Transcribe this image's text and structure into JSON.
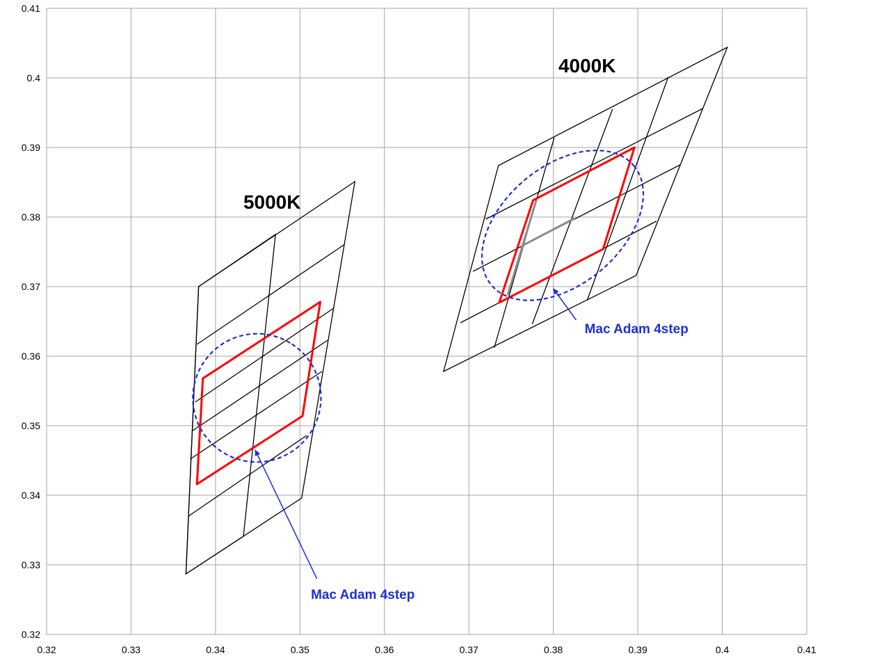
{
  "chart_data": {
    "type": "scatter",
    "xlim": [
      0.32,
      0.41
    ],
    "ylim": [
      0.32,
      0.41
    ],
    "x_ticks": [
      "0.32",
      "0.33",
      "0.34",
      "0.35",
      "0.36",
      "0.37",
      "0.38",
      "0.39",
      "0.4",
      "0.41"
    ],
    "y_ticks": [
      "0.32",
      "0.33",
      "0.34",
      "0.35",
      "0.36",
      "0.37",
      "0.38",
      "0.39",
      "0.4",
      "0.41"
    ],
    "grid": true,
    "colors": {
      "grid": "#a6a6a6",
      "quad_lines": "#000000",
      "bin_outline": "#ff0000",
      "ellipse": "#1f2ed6",
      "gray_lines": "#8c8c8c",
      "annotation": "#1f2ed6"
    },
    "groups": [
      {
        "label": "5000K",
        "label_position": [
          0.3433,
          0.3812
        ],
        "grid_quads": [
          [
            [
              0.3365,
              0.3287
            ],
            [
              0.338,
              0.37
            ],
            [
              0.3565,
              0.3851
            ],
            [
              0.3502,
              0.3396
            ]
          ],
          [
            [
              0.3365,
              0.3287
            ],
            [
              0.338,
              0.37
            ],
            [
              0.3471,
              0.3775
            ],
            [
              0.3433,
              0.3341
            ]
          ],
          [
            [
              0.3373,
              0.3493
            ],
            [
              0.3533,
              0.3623
            ]
          ],
          [
            [
              0.3368,
              0.337
            ],
            [
              0.3508,
              0.3486
            ]
          ],
          [
            [
              0.337,
              0.3452
            ],
            [
              0.3526,
              0.3578
            ]
          ],
          [
            [
              0.3376,
              0.3534
            ],
            [
              0.354,
              0.3669
            ]
          ],
          [
            [
              0.3378,
              0.3617
            ],
            [
              0.3552,
              0.376
            ]
          ]
        ],
        "bin_outline": [
          [
            0.3378,
            0.3416
          ],
          [
            0.3385,
            0.3568
          ],
          [
            0.3524,
            0.3678
          ],
          [
            0.3503,
            0.3514
          ]
        ],
        "ellipse": {
          "cx": 0.3449,
          "cy": 0.354,
          "rx": 0.0076,
          "ry": 0.0092,
          "rotation_deg": -57
        },
        "annotation": {
          "text": "Mac Adam 4step",
          "text_position": [
            0.3513,
            0.3251
          ],
          "arrow_from": [
            0.352,
            0.328
          ],
          "arrow_to": [
            0.3447,
            0.3465
          ]
        }
      },
      {
        "label": "4000K",
        "label_position": [
          0.3806,
          0.4008
        ],
        "grid_quads": [
          [
            [
              0.367,
              0.3578
            ],
            [
              0.3735,
              0.3874
            ],
            [
              0.4006,
              0.4044
            ],
            [
              0.3898,
              0.3716
            ]
          ],
          [
            [
              0.373,
              0.3612
            ],
            [
              0.3801,
              0.3914
            ]
          ],
          [
            [
              0.3775,
              0.3646
            ],
            [
              0.387,
              0.3955
            ]
          ],
          [
            [
              0.384,
              0.368
            ],
            [
              0.3936,
              0.4001
            ]
          ],
          [
            [
              0.369,
              0.3648
            ],
            [
              0.3922,
              0.3794
            ]
          ],
          [
            [
              0.3705,
              0.3722
            ],
            [
              0.395,
              0.3875
            ]
          ],
          [
            [
              0.372,
              0.3797
            ],
            [
              0.3977,
              0.3956
            ]
          ]
        ],
        "bin_outline": [
          [
            0.3736,
            0.3677
          ],
          [
            0.3776,
            0.3824
          ],
          [
            0.3896,
            0.39
          ],
          [
            0.3859,
            0.3754
          ]
        ],
        "gray_lines": [
          [
            [
              0.3746,
              0.3688
            ],
            [
              0.378,
              0.3825
            ]
          ],
          [
            [
              0.3765,
              0.376
            ],
            [
              0.3825,
              0.3798
            ]
          ]
        ],
        "ellipse": {
          "cx": 0.3811,
          "cy": 0.3788,
          "rx": 0.011,
          "ry": 0.0085,
          "rotation_deg": -40
        },
        "annotation": {
          "text": "Mac Adam 4step",
          "text_position": [
            0.3837,
            0.3633
          ],
          "arrow_from": [
            0.3827,
            0.3652
          ],
          "arrow_to": [
            0.38,
            0.3697
          ]
        }
      }
    ]
  }
}
